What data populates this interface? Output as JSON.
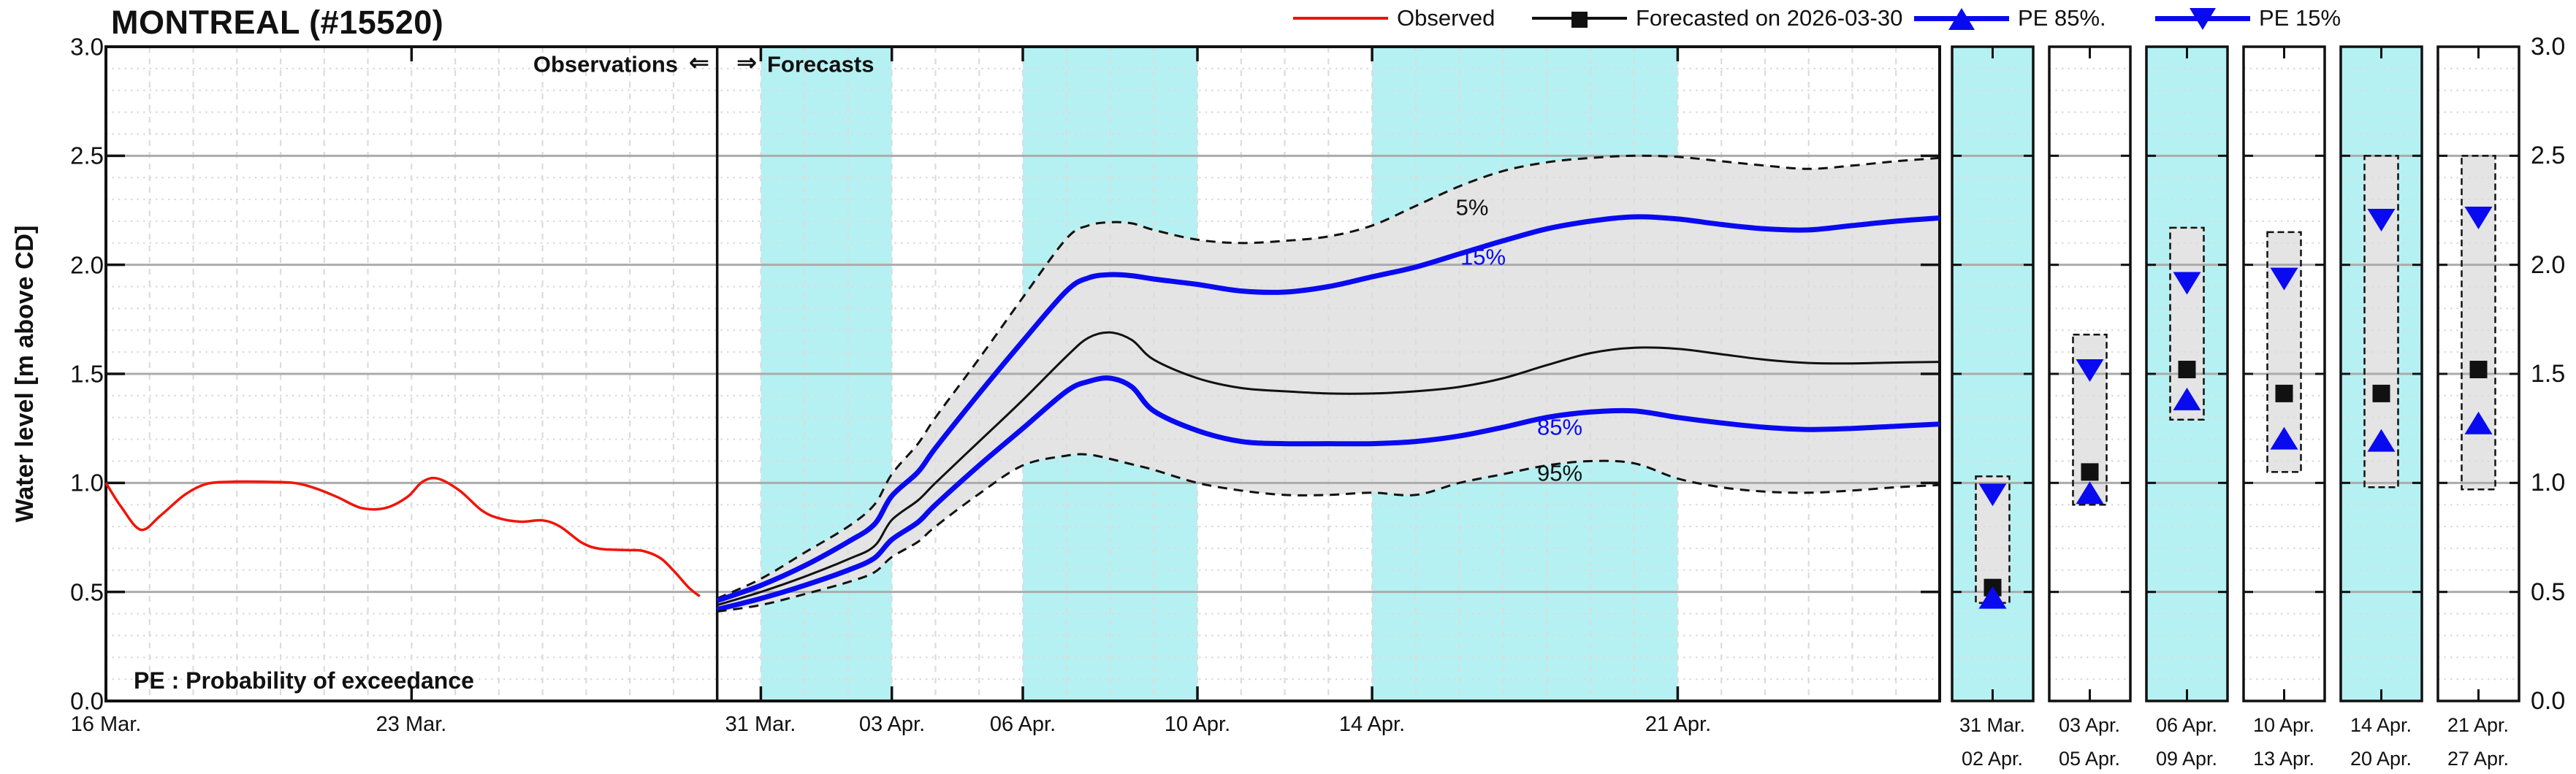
{
  "header": {
    "title": "MONTREAL (#15520)"
  },
  "legend": {
    "items": [
      {
        "label": "Observed",
        "marker": "line",
        "color": "#F01408"
      },
      {
        "label": "Forecasted on 2026-03-30",
        "marker": "square",
        "color": "#111111"
      },
      {
        "label": "PE 85%.",
        "marker": "triangle-up",
        "color": "#0A0AF0"
      },
      {
        "label": "PE 15%",
        "marker": "triangle-down",
        "color": "#0A0AF0"
      }
    ]
  },
  "axis": {
    "y_title": "Water level [m above CD]",
    "y_ticks": [
      "3.0",
      "2.5",
      "2.0",
      "1.5",
      "1.0",
      "0.5",
      "0.0"
    ]
  },
  "annotations": {
    "observations": "Observations",
    "arrow_left": "⇐",
    "arrow_right": "⇒",
    "forecasts": "Forecasts",
    "pe_note": "PE : Probability of exceedance",
    "label_p5": "5%",
    "label_p15": "15%",
    "label_p85": "85%",
    "label_p95": "95%"
  },
  "colors": {
    "observed": "#F01408",
    "forecast_black": "#111111",
    "pe_blue": "#0A0AF0",
    "band_cyan": "#B5F1F2",
    "envelope_gray": "#E4E4E4",
    "grid_minor": "#DBDBDB",
    "grid_day": "#DCDCDC",
    "grid_major": "#ABABAB",
    "frame": "#111111"
  },
  "chart_data": {
    "type": "line",
    "title": "MONTREAL (#15520)",
    "xlabel": "",
    "ylabel": "Water level [m above CD]",
    "ylim": [
      0.0,
      3.0
    ],
    "y_major_step": 0.5,
    "y_minor_step": 0.1,
    "grid": true,
    "x_unit": "days since 16 Mar.",
    "day_min": 0,
    "day_max": 42,
    "divider_day": 14,
    "forecast_issued": "2026-03-30",
    "highlight_bands": [
      [
        15,
        18
      ],
      [
        21,
        25
      ],
      [
        29,
        36
      ]
    ],
    "x_ticks": [
      {
        "day": 0,
        "label": "16 Mar."
      },
      {
        "day": 7,
        "label": "23 Mar."
      },
      {
        "day": 15,
        "label": "31 Mar."
      },
      {
        "day": 18,
        "label": "03 Apr."
      },
      {
        "day": 21,
        "label": "06 Apr."
      },
      {
        "day": 25,
        "label": "10 Apr."
      },
      {
        "day": 29,
        "label": "14 Apr."
      },
      {
        "day": 36,
        "label": "21 Apr."
      }
    ],
    "series": [
      {
        "name": "observed",
        "style": "solid-red",
        "x": [
          0,
          0.35,
          0.8,
          1.25,
          1.8,
          2.3,
          2.9,
          3.6,
          4.3,
          4.8,
          5.3,
          5.85,
          6.4,
          6.9,
          7.25,
          7.6,
          8.1,
          8.6,
          9.0,
          9.5,
          10.0,
          10.4,
          10.9,
          11.3,
          11.9,
          12.3,
          12.7,
          13.0,
          13.35,
          13.6
        ],
        "y": [
          1.0,
          0.89,
          0.785,
          0.85,
          0.945,
          0.995,
          1.005,
          1.005,
          1.0,
          0.975,
          0.935,
          0.885,
          0.885,
          0.935,
          1.005,
          1.02,
          0.965,
          0.875,
          0.838,
          0.822,
          0.828,
          0.8,
          0.726,
          0.698,
          0.692,
          0.688,
          0.655,
          0.598,
          0.52,
          0.48
        ]
      },
      {
        "name": "pe5",
        "style": "dashed-black",
        "x": [
          14,
          15,
          16,
          17,
          17.6,
          18,
          18.6,
          19,
          20,
          21,
          22,
          22.5,
          23,
          23.5,
          24,
          25,
          26,
          27,
          28,
          29,
          30,
          31,
          32,
          33,
          34,
          35,
          36,
          37,
          38,
          39,
          40,
          41,
          42
        ],
        "y": [
          0.47,
          0.56,
          0.68,
          0.8,
          0.9,
          1.04,
          1.18,
          1.3,
          1.57,
          1.85,
          2.12,
          2.18,
          2.195,
          2.19,
          2.16,
          2.115,
          2.1,
          2.11,
          2.13,
          2.18,
          2.27,
          2.36,
          2.43,
          2.47,
          2.49,
          2.5,
          2.495,
          2.475,
          2.455,
          2.44,
          2.455,
          2.475,
          2.49
        ]
      },
      {
        "name": "pe15",
        "style": "solid-blue",
        "x": [
          14,
          15,
          16,
          17,
          17.6,
          18,
          18.6,
          19,
          20,
          21,
          22,
          22.5,
          23,
          23.5,
          24,
          25,
          26,
          27,
          28,
          29,
          30,
          31,
          32,
          33,
          34,
          35,
          36,
          37,
          38,
          39,
          40,
          41,
          42
        ],
        "y": [
          0.46,
          0.53,
          0.62,
          0.73,
          0.81,
          0.94,
          1.05,
          1.16,
          1.41,
          1.65,
          1.88,
          1.94,
          1.955,
          1.95,
          1.935,
          1.91,
          1.88,
          1.875,
          1.9,
          1.945,
          1.99,
          2.05,
          2.11,
          2.165,
          2.2,
          2.22,
          2.21,
          2.185,
          2.165,
          2.16,
          2.18,
          2.2,
          2.215
        ]
      },
      {
        "name": "forecast_median",
        "style": "solid-black",
        "x": [
          14,
          15,
          16,
          17,
          17.6,
          18,
          18.6,
          19,
          20,
          21,
          22,
          22.5,
          23,
          23.5,
          24,
          25,
          26,
          27,
          28,
          29,
          30,
          31,
          32,
          33,
          34,
          35,
          36,
          37,
          38,
          39,
          40,
          41,
          42
        ],
        "y": [
          0.44,
          0.5,
          0.57,
          0.65,
          0.71,
          0.83,
          0.92,
          1.0,
          1.19,
          1.38,
          1.58,
          1.665,
          1.69,
          1.655,
          1.565,
          1.48,
          1.435,
          1.42,
          1.41,
          1.41,
          1.42,
          1.44,
          1.48,
          1.54,
          1.595,
          1.62,
          1.615,
          1.59,
          1.565,
          1.55,
          1.548,
          1.552,
          1.555
        ]
      },
      {
        "name": "pe85",
        "style": "solid-blue",
        "x": [
          14,
          15,
          16,
          17,
          17.6,
          18,
          18.6,
          19,
          20,
          21,
          22,
          22.5,
          23,
          23.5,
          24,
          25,
          26,
          27,
          28,
          29,
          30,
          31,
          32,
          33,
          34,
          35,
          36,
          37,
          38,
          39,
          40,
          41,
          42
        ],
        "y": [
          0.42,
          0.47,
          0.53,
          0.6,
          0.655,
          0.74,
          0.82,
          0.9,
          1.08,
          1.25,
          1.42,
          1.465,
          1.48,
          1.44,
          1.33,
          1.24,
          1.19,
          1.18,
          1.18,
          1.18,
          1.19,
          1.215,
          1.255,
          1.3,
          1.325,
          1.33,
          1.3,
          1.275,
          1.255,
          1.245,
          1.25,
          1.26,
          1.27
        ]
      },
      {
        "name": "pe95",
        "style": "dashed-black",
        "x": [
          14,
          15,
          16,
          17,
          17.6,
          18,
          18.6,
          19,
          20,
          21,
          22,
          22.5,
          23,
          23.5,
          24,
          25,
          26,
          27,
          28,
          29,
          30,
          31,
          32,
          33,
          34,
          35,
          36,
          37,
          38,
          39,
          40,
          41,
          42
        ],
        "y": [
          0.41,
          0.44,
          0.49,
          0.545,
          0.59,
          0.66,
          0.73,
          0.8,
          0.95,
          1.08,
          1.125,
          1.13,
          1.11,
          1.085,
          1.06,
          1.0,
          0.965,
          0.945,
          0.945,
          0.955,
          0.945,
          1.0,
          1.04,
          1.08,
          1.1,
          1.09,
          1.02,
          0.98,
          0.96,
          0.955,
          0.965,
          0.98,
          0.99
        ]
      }
    ],
    "envelope": {
      "upper": "pe5",
      "lower": "pe95"
    },
    "panels": [
      {
        "label_start": "31 Mar.",
        "label_end": "02 Apr.",
        "highlight": true,
        "p5": 1.03,
        "p15": 0.95,
        "median": 0.52,
        "p85": 0.47,
        "p95": 0.45
      },
      {
        "label_start": "03 Apr.",
        "label_end": "05 Apr.",
        "highlight": false,
        "p5": 1.68,
        "p15": 1.52,
        "median": 1.05,
        "p85": 0.95,
        "p95": 0.9
      },
      {
        "label_start": "06 Apr.",
        "label_end": "09 Apr.",
        "highlight": true,
        "p5": 2.17,
        "p15": 1.92,
        "median": 1.52,
        "p85": 1.38,
        "p95": 1.29
      },
      {
        "label_start": "10 Apr.",
        "label_end": "13 Apr.",
        "highlight": false,
        "p5": 2.15,
        "p15": 1.94,
        "median": 1.41,
        "p85": 1.2,
        "p95": 1.05
      },
      {
        "label_start": "14 Apr.",
        "label_end": "20 Apr.",
        "highlight": true,
        "p5": 2.5,
        "p15": 2.21,
        "median": 1.41,
        "p85": 1.19,
        "p95": 0.98
      },
      {
        "label_start": "21 Apr.",
        "label_end": "27 Apr.",
        "highlight": false,
        "p5": 2.5,
        "p15": 2.22,
        "median": 1.52,
        "p85": 1.27,
        "p95": 0.97
      }
    ]
  }
}
